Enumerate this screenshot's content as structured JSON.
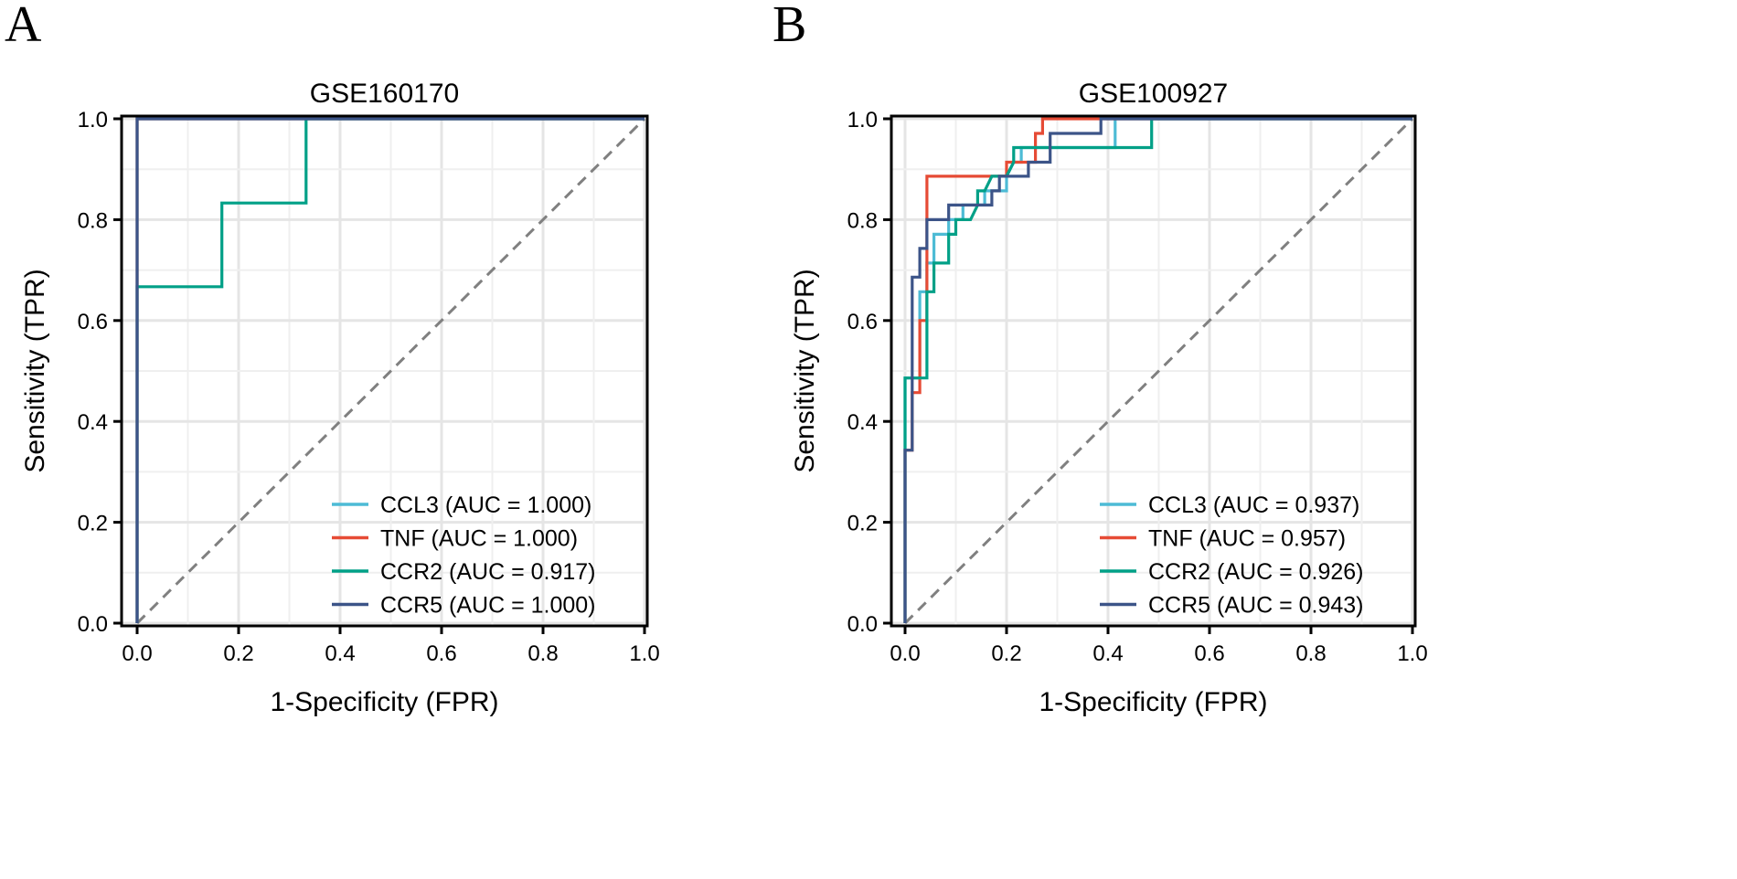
{
  "chart_data": [
    {
      "type": "line",
      "panel_label": "A",
      "title": "GSE160170",
      "xlabel": "1-Specificity (FPR)",
      "ylabel": "Sensitivity (TPR)",
      "xlim": [
        0,
        1
      ],
      "ylim": [
        0,
        1
      ],
      "ticks": [
        "0.0",
        "0.2",
        "0.4",
        "0.6",
        "0.8",
        "1.0"
      ],
      "grid": true,
      "legend_position": "bottom-right",
      "series": [
        {
          "name": "CCL3 (AUC = 1.000)",
          "color": "#4DBBD5",
          "x": [
            0,
            0,
            1
          ],
          "y": [
            0,
            1,
            1
          ]
        },
        {
          "name": "TNF (AUC = 1.000)",
          "color": "#E64B35",
          "x": [
            0,
            0,
            1
          ],
          "y": [
            0,
            1,
            1
          ]
        },
        {
          "name": "CCR2 (AUC = 0.917)",
          "color": "#00A087",
          "x": [
            0,
            0,
            0.167,
            0.167,
            0.333,
            0.333,
            1
          ],
          "y": [
            0,
            0.667,
            0.667,
            0.833,
            0.833,
            1,
            1
          ]
        },
        {
          "name": "CCR5 (AUC = 1.000)",
          "color": "#3C5488",
          "x": [
            0,
            0,
            1
          ],
          "y": [
            0,
            1,
            1
          ]
        }
      ]
    },
    {
      "type": "line",
      "panel_label": "B",
      "title": "GSE100927",
      "xlabel": "1-Specificity (FPR)",
      "ylabel": "Sensitivity (TPR)",
      "xlim": [
        0,
        1
      ],
      "ylim": [
        0,
        1
      ],
      "ticks": [
        "0.0",
        "0.2",
        "0.4",
        "0.6",
        "0.8",
        "1.0"
      ],
      "grid": true,
      "legend_position": "bottom-right",
      "series": [
        {
          "name": "CCL3 (AUC = 0.937)",
          "color": "#4DBBD5",
          "x": [
            0,
            0,
            0.029,
            0.029,
            0.043,
            0.043,
            0.057,
            0.057,
            0.086,
            0.086,
            0.114,
            0.114,
            0.157,
            0.157,
            0.2,
            0.2,
            0.214,
            0.229,
            0.229,
            0.414,
            0.414,
            1
          ],
          "y": [
            0,
            0.486,
            0.486,
            0.657,
            0.657,
            0.714,
            0.714,
            0.771,
            0.771,
            0.8,
            0.8,
            0.829,
            0.829,
            0.857,
            0.857,
            0.886,
            0.914,
            0.914,
            0.943,
            0.943,
            1,
            1
          ]
        },
        {
          "name": "TNF (AUC = 0.957)",
          "color": "#E64B35",
          "x": [
            0,
            0,
            0.014,
            0.014,
            0.029,
            0.029,
            0.043,
            0.043,
            0.2,
            0.2,
            0.257,
            0.257,
            0.271,
            0.271,
            1
          ],
          "y": [
            0,
            0.343,
            0.343,
            0.457,
            0.457,
            0.6,
            0.6,
            0.886,
            0.886,
            0.914,
            0.914,
            0.971,
            0.971,
            1,
            1
          ]
        },
        {
          "name": "CCR2 (AUC = 0.926)",
          "color": "#00A087",
          "x": [
            0,
            0,
            0.043,
            0.043,
            0.057,
            0.057,
            0.086,
            0.086,
            0.1,
            0.1,
            0.129,
            0.143,
            0.143,
            0.157,
            0.171,
            0.2,
            0.214,
            0.214,
            0.486,
            0.486,
            1
          ],
          "y": [
            0,
            0.486,
            0.486,
            0.657,
            0.657,
            0.714,
            0.714,
            0.771,
            0.771,
            0.8,
            0.8,
            0.829,
            0.857,
            0.857,
            0.886,
            0.886,
            0.914,
            0.943,
            0.943,
            1,
            1
          ]
        },
        {
          "name": "CCR5 (AUC = 0.943)",
          "color": "#3C5488",
          "x": [
            0,
            0,
            0.014,
            0.014,
            0.029,
            0.029,
            0.043,
            0.043,
            0.086,
            0.086,
            0.171,
            0.171,
            0.186,
            0.186,
            0.243,
            0.243,
            0.286,
            0.286,
            0.386,
            0.386,
            1
          ],
          "y": [
            0,
            0.343,
            0.343,
            0.686,
            0.686,
            0.743,
            0.743,
            0.8,
            0.8,
            0.829,
            0.829,
            0.857,
            0.857,
            0.886,
            0.886,
            0.914,
            0.914,
            0.971,
            0.971,
            1,
            1
          ]
        }
      ]
    }
  ]
}
